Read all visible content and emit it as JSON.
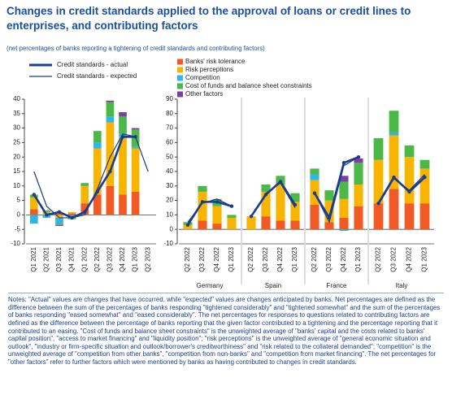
{
  "chart_data": [
    {
      "type": "bar",
      "title": "Changes in credit standards applied to the approval of loans or credit lines to enterprises, and contributing factors",
      "title_lines": [
        "Changes in credit standards applied to the approval of loans or credit lines to",
        "enterprises, and contributing factors"
      ],
      "subtitle": "(net percentages of banks reporting a tightening of credit standards and contributing factors)",
      "categories": [
        "Q1 2021",
        "Q2 2021",
        "Q3 2021",
        "Q4 2021",
        "Q1 2022",
        "Q2 2022",
        "Q3 2022",
        "Q4 2022",
        "Q1 2023",
        "Q2 2023"
      ],
      "series": [
        {
          "name": "Banks' risk tolerance",
          "color": "#f15a24",
          "values": [
            2,
            0,
            0.5,
            0.5,
            4,
            7,
            10,
            7,
            8,
            null
          ]
        },
        {
          "name": "Risk perceptions",
          "color": "#f7b500",
          "values": [
            4,
            1,
            -1,
            0.5,
            6,
            16,
            22,
            20,
            15,
            null
          ]
        },
        {
          "name": "Competition",
          "color": "#2eb6e8",
          "values": [
            -3,
            -1,
            -2,
            -1,
            0,
            2,
            2,
            1,
            0.5,
            null
          ]
        },
        {
          "name": "Cost of funds and balance sheet constraints",
          "color": "#4cb848",
          "values": [
            1,
            0.5,
            -0.5,
            -0.5,
            1,
            4,
            5,
            6,
            6,
            null
          ]
        },
        {
          "name": "Other factors",
          "color": "#7b3fa0",
          "values": [
            0,
            0,
            -0.3,
            0,
            0,
            0,
            0.5,
            1.5,
            0.5,
            null
          ]
        }
      ],
      "lines": [
        {
          "name": "Credit standards - actual",
          "color": "#1b3c8f",
          "values": [
            7,
            0,
            1,
            -1,
            1,
            8,
            15,
            27,
            27,
            null
          ]
        },
        {
          "name": "Credit standards - expected",
          "color": "#1b3c8f",
          "values": [
            15,
            3,
            -1,
            -1,
            0,
            9,
            20,
            28,
            27,
            15
          ]
        }
      ],
      "ylim": [
        -10,
        40
      ],
      "yticks": [
        -10,
        -5,
        0,
        5,
        10,
        15,
        20,
        25,
        30,
        35,
        40
      ]
    },
    {
      "type": "bar",
      "xlabel": "Germany",
      "categories": [
        "Q2 2022",
        "Q3 2022",
        "Q4 2022",
        "Q1 2023"
      ],
      "series": [
        {
          "name": "Banks' risk tolerance",
          "color": "#f15a24",
          "values": [
            0,
            6,
            4,
            0
          ]
        },
        {
          "name": "Risk perceptions",
          "color": "#f7b500",
          "values": [
            3,
            20,
            12,
            8
          ]
        },
        {
          "name": "Competition",
          "color": "#2eb6e8",
          "values": [
            0,
            0,
            0,
            0
          ]
        },
        {
          "name": "Cost of funds and balance sheet constraints",
          "color": "#4cb848",
          "values": [
            2,
            4,
            5,
            2
          ]
        },
        {
          "name": "Other factors",
          "color": "#7b3fa0",
          "values": [
            0,
            0,
            0,
            0
          ]
        }
      ],
      "lines": [
        {
          "name": "Credit standards - actual",
          "color": "#1b3c8f",
          "values": [
            3,
            19,
            19,
            16
          ]
        },
        {
          "name": "Credit standards - expected",
          "color": "#1b3c8f",
          "values": [
            5,
            18,
            21,
            16
          ]
        }
      ],
      "ylim": [
        -10,
        90
      ],
      "yticks": [
        -10,
        0,
        10,
        20,
        30,
        40,
        50,
        60,
        70,
        80,
        90
      ]
    },
    {
      "type": "bar",
      "xlabel": "Spain",
      "categories": [
        "Q2 2022",
        "Q3 2022",
        "Q4 2022",
        "Q1 2023"
      ],
      "series": [
        {
          "name": "Banks' risk tolerance",
          "color": "#f15a24",
          "values": [
            0,
            9,
            6,
            6
          ]
        },
        {
          "name": "Risk perceptions",
          "color": "#f7b500",
          "values": [
            9,
            17,
            25,
            13
          ]
        },
        {
          "name": "Competition",
          "color": "#2eb6e8",
          "values": [
            0,
            0,
            0,
            0
          ]
        },
        {
          "name": "Cost of funds and balance sheet constraints",
          "color": "#4cb848",
          "values": [
            0,
            5,
            6,
            6
          ]
        },
        {
          "name": "Other factors",
          "color": "#7b3fa0",
          "values": [
            0,
            0,
            0,
            0
          ]
        }
      ],
      "lines": [
        {
          "name": "Credit standards - actual",
          "color": "#1b3c8f",
          "values": [
            9,
            24,
            33,
            17
          ]
        },
        {
          "name": "Credit standards - expected",
          "color": "#1b3c8f",
          "values": [
            9,
            25,
            32,
            15
          ]
        }
      ],
      "ylim": [
        -10,
        90
      ],
      "yticks": [
        -10,
        0,
        10,
        20,
        30,
        40,
        50,
        60,
        70,
        80,
        90
      ]
    },
    {
      "type": "bar",
      "xlabel": "France",
      "categories": [
        "Q2 2022",
        "Q3 2022",
        "Q4 2022",
        "Q1 2023"
      ],
      "series": [
        {
          "name": "Banks' risk tolerance",
          "color": "#f15a24",
          "values": [
            17,
            5,
            8,
            16
          ]
        },
        {
          "name": "Risk perceptions",
          "color": "#f7b500",
          "values": [
            17,
            15,
            13,
            15
          ]
        },
        {
          "name": "Competition",
          "color": "#2eb6e8",
          "values": [
            4,
            0,
            -1,
            0
          ]
        },
        {
          "name": "Cost of funds and balance sheet constraints",
          "color": "#4cb848",
          "values": [
            4,
            7,
            12,
            15
          ]
        },
        {
          "name": "Other factors",
          "color": "#7b3fa0",
          "values": [
            0,
            0,
            4,
            3
          ]
        }
      ],
      "lines": [
        {
          "name": "Credit standards - actual",
          "color": "#1b3c8f",
          "values": [
            25,
            8,
            46,
            50
          ]
        },
        {
          "name": "Credit standards - expected",
          "color": "#1b3c8f",
          "values": [
            25,
            5,
            44,
            50
          ]
        }
      ],
      "ylim": [
        -10,
        90
      ],
      "yticks": [
        -10,
        0,
        10,
        20,
        30,
        40,
        50,
        60,
        70,
        80,
        90
      ]
    },
    {
      "type": "bar",
      "xlabel": "Italy",
      "categories": [
        "Q2 2022",
        "Q3 2022",
        "Q4 2022",
        "Q1 2023"
      ],
      "series": [
        {
          "name": "Banks' risk tolerance",
          "color": "#f15a24",
          "values": [
            18,
            28,
            18,
            18
          ]
        },
        {
          "name": "Risk perceptions",
          "color": "#f7b500",
          "values": [
            30,
            37,
            32,
            24
          ]
        },
        {
          "name": "Competition",
          "color": "#2eb6e8",
          "values": [
            0,
            2,
            0,
            0
          ]
        },
        {
          "name": "Cost of funds and balance sheet constraints",
          "color": "#4cb848",
          "values": [
            15,
            15,
            8,
            6
          ]
        },
        {
          "name": "Other factors",
          "color": "#7b3fa0",
          "values": [
            0,
            0,
            0,
            0
          ]
        }
      ],
      "lines": [
        {
          "name": "Credit standards - actual",
          "color": "#1b3c8f",
          "values": [
            18,
            36,
            26,
            36
          ]
        },
        {
          "name": "Credit standards - expected",
          "color": "#1b3c8f",
          "values": [
            17,
            35,
            27,
            38
          ]
        }
      ],
      "ylim": [
        -10,
        90
      ],
      "yticks": [
        -10,
        0,
        10,
        20,
        30,
        40,
        50,
        60,
        70,
        80,
        90
      ]
    }
  ],
  "notes": "Notes: \"Actual\" values are changes that have occurred, while \"expected\" values are changes anticipated by banks. Net percentages are defined as the difference between the sum of the percentages of banks responding \"tightened considerably\" and \"tightened somewhat\" and the sum of the percentages of banks responding \"eased somewhat\" and \"eased considerably\". The net percentages for responses to questions related to contributing factors are defined as the difference between the percentage of banks reporting that the given factor contributed to a tightening and the percentage reporting that it contributed to an easing. \"Cost of funds and balance sheet constraints\" is the unweighted average of \"banks' capital and the costs related to banks' capital position\", \"access to market financing\" and \"liquidity position\"; \"risk perceptions\" is the unweighted average of \"general economic situation and outlook\", \"industry or firm-specific situation and outlook/borrower's creditworthiness\" and \"risk related to the collateral demanded\"; \"competition\" is the unweighted average of \"competition from other banks\", \"competition from non-banks\" and \"competition from market financing\". The net percentages for \"other factors\" refer to further factors which were mentioned by banks as having contributed to changes in credit standards."
}
